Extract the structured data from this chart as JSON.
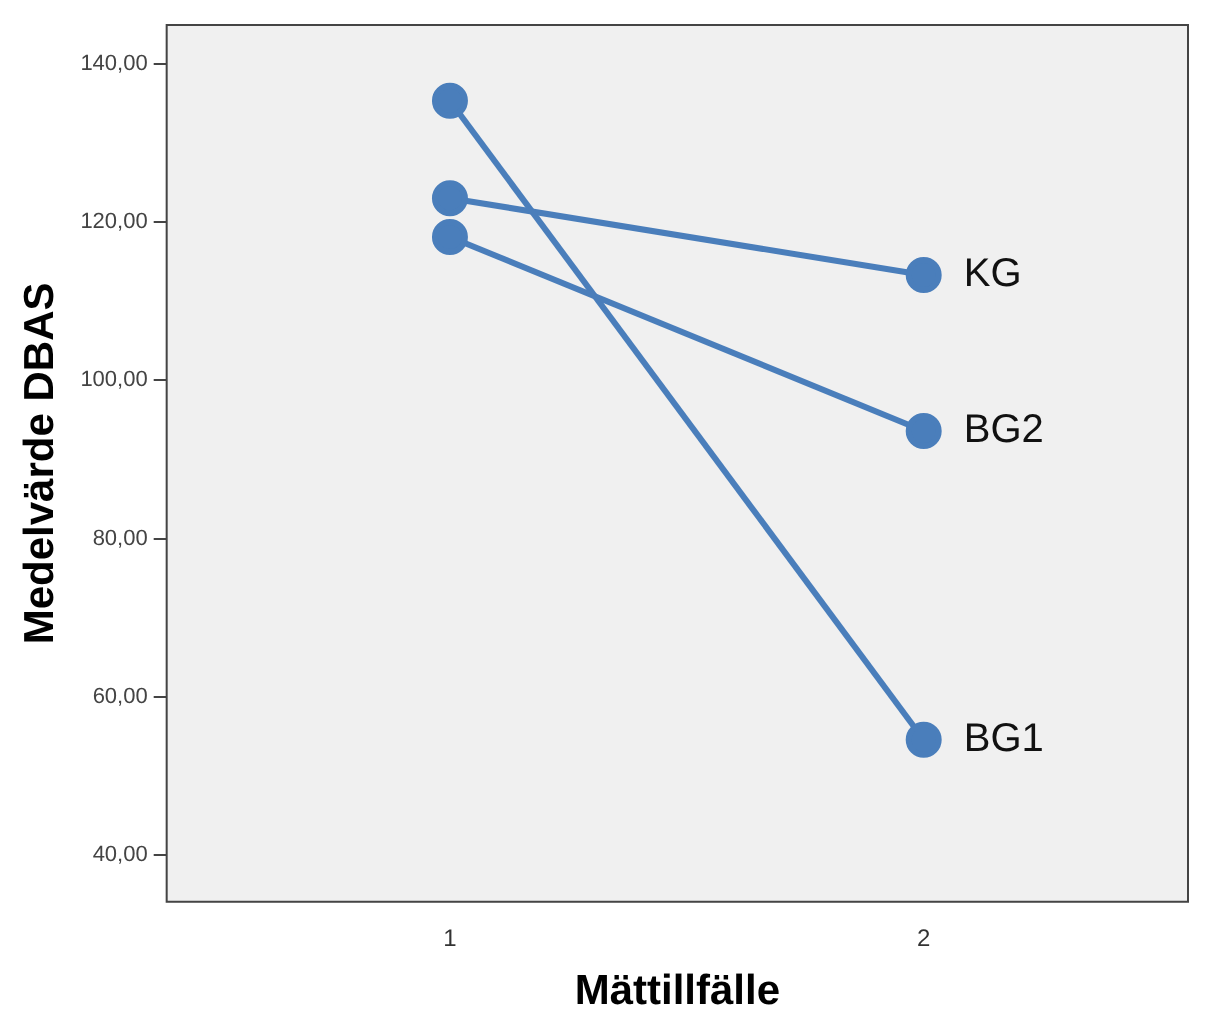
{
  "chart_data": {
    "type": "line",
    "xlabel": "Mättillfälle",
    "ylabel": "Medelvärde DBAS",
    "categories": [
      "1",
      "2"
    ],
    "series": [
      {
        "name": "KG",
        "color": "#4a7ebb",
        "values": [
          123,
          113.3
        ]
      },
      {
        "name": "BG2",
        "color": "#4a7ebb",
        "values": [
          118.1,
          93.6
        ]
      },
      {
        "name": "BG1",
        "color": "#4a7ebb",
        "values": [
          135.3,
          54.6
        ]
      }
    ],
    "ylim": [
      34,
      145
    ],
    "yticks": [
      {
        "value": 40,
        "label": "40,00"
      },
      {
        "value": 60,
        "label": "60,00"
      },
      {
        "value": 80,
        "label": "80,00"
      },
      {
        "value": 100,
        "label": "100,00"
      },
      {
        "value": 120,
        "label": "120,00"
      },
      {
        "value": 140,
        "label": "140,00"
      }
    ],
    "grid": false,
    "legend": false,
    "marker": "circle",
    "line_style": "solid"
  }
}
